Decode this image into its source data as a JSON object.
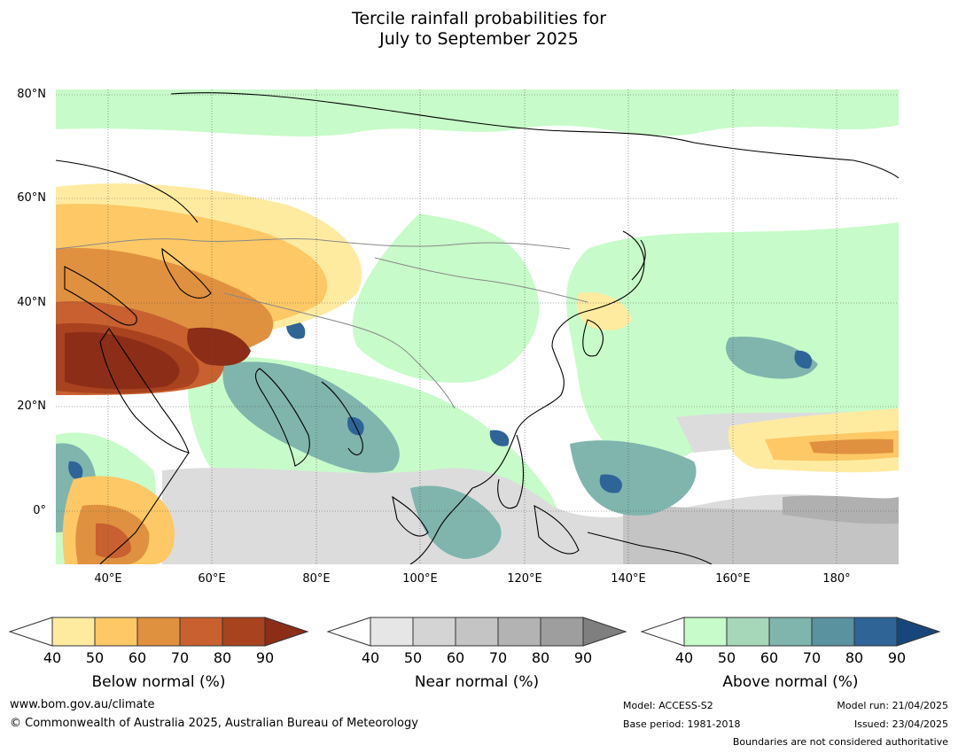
{
  "title": {
    "line1": "Tercile rainfall probabilities for",
    "line2": "July to September 2025"
  },
  "map": {
    "lat_labels": [
      "80°N",
      "60°N",
      "40°N",
      "20°N",
      "0°"
    ],
    "lon_labels": [
      "40°E",
      "60°E",
      "80°E",
      "100°E",
      "120°E",
      "140°E",
      "160°E",
      "180°"
    ]
  },
  "legends": [
    {
      "label": "Below normal (%)",
      "ticks": [
        "40",
        "50",
        "60",
        "70",
        "80",
        "90"
      ],
      "colors": [
        "#ffffff",
        "#ffeba0",
        "#fdc865",
        "#e0913f",
        "#c8612f",
        "#a9431f",
        "#8c2d17"
      ]
    },
    {
      "label": "Near normal (%)",
      "ticks": [
        "40",
        "50",
        "60",
        "70",
        "80",
        "90"
      ],
      "colors": [
        "#ffffff",
        "#e6e6e6",
        "#d4d4d4",
        "#c4c4c4",
        "#b3b3b3",
        "#9e9e9e",
        "#7f7f7f"
      ]
    },
    {
      "label": "Above normal (%)",
      "ticks": [
        "40",
        "50",
        "60",
        "70",
        "80",
        "90"
      ],
      "colors": [
        "#ffffff",
        "#c7fbc9",
        "#a6d7b8",
        "#7fb5ad",
        "#5a92a0",
        "#2f6497",
        "#17477a"
      ]
    }
  ],
  "footer": {
    "website": "www.bom.gov.au/climate",
    "copyright": "© Commonwealth of Australia 2025, Australian Bureau of Meteorology",
    "model": "Model: ACCESS-S2",
    "base_period": "Base period: 1981-2018",
    "model_run": "Model run: 21/04/2025",
    "issued": "Issued: 23/04/2025",
    "boundaries": "Boundaries are not considered authoritative"
  }
}
